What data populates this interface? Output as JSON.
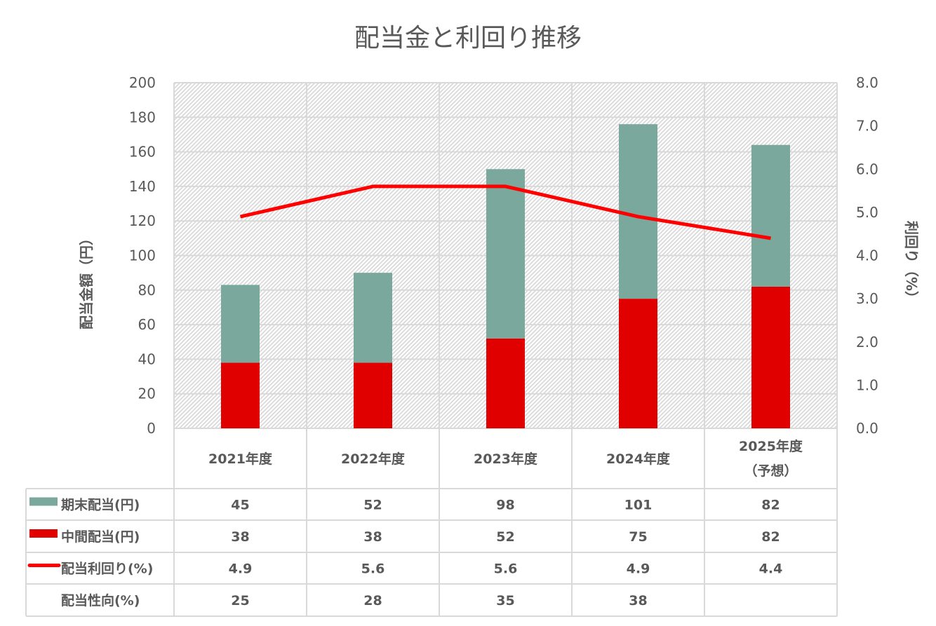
{
  "chart_data": {
    "type": "bar",
    "title": "配当金と利回り推移",
    "categories": [
      "2021年度",
      "2022年度",
      "2023年度",
      "2024年度",
      "2025年度"
    ],
    "category_sublabels": [
      "",
      "",
      "",
      "",
      "（予想）"
    ],
    "ylabel": "配当金額（円）",
    "y2label": "利回り（%）",
    "ylim": [
      0,
      200
    ],
    "y2lim": [
      0,
      8
    ],
    "yticks": [
      "0",
      "20",
      "40",
      "60",
      "80",
      "100",
      "120",
      "140",
      "160",
      "180",
      "200"
    ],
    "y2ticks": [
      "0.0",
      "1.0",
      "2.0",
      "3.0",
      "4.0",
      "5.0",
      "6.0",
      "7.0",
      "8.0"
    ],
    "grid": true,
    "stacked": true,
    "series": [
      {
        "name": "中間配当(円)",
        "type": "bar",
        "color": "#e00000",
        "values": [
          38,
          38,
          52,
          75,
          82
        ]
      },
      {
        "name": "期末配当(円)",
        "type": "bar",
        "color": "#7aa89c",
        "values": [
          45,
          52,
          98,
          101,
          82
        ]
      },
      {
        "name": "配当利回り(%)",
        "type": "line",
        "axis": "right",
        "color": "#ff0000",
        "values": [
          4.9,
          5.6,
          5.6,
          4.9,
          4.4
        ]
      }
    ],
    "table": [
      {
        "label": "期末配当(円)",
        "legend": "bar",
        "color": "#7aa89c",
        "cells": [
          "45",
          "52",
          "98",
          "101",
          "82"
        ]
      },
      {
        "label": "中間配当(円)",
        "legend": "bar",
        "color": "#e00000",
        "cells": [
          "38",
          "38",
          "52",
          "75",
          "82"
        ]
      },
      {
        "label": "配当利回り(%)",
        "legend": "line",
        "color": "#ff0000",
        "cells": [
          "4.9",
          "5.6",
          "5.6",
          "4.9",
          "4.4"
        ]
      },
      {
        "label": "配当性向(%)",
        "legend": "none",
        "color": "",
        "cells": [
          "25",
          "28",
          "35",
          "38",
          ""
        ]
      }
    ]
  }
}
